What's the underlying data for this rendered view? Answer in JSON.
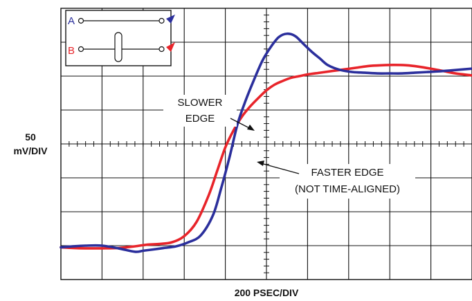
{
  "chart_data": {
    "type": "line",
    "xlabel": "200 PSEC/DIV",
    "ylabel_lines": [
      "50",
      "mV/DIV"
    ],
    "grid": true,
    "divisions": {
      "x": 10,
      "y": 8
    },
    "xlim": [
      0,
      10
    ],
    "ylim": [
      0,
      8
    ],
    "series": [
      {
        "name": "A",
        "color": "#2b2f9c",
        "x": [
          0,
          0.3,
          0.6,
          1.0,
          1.4,
          1.8,
          2.0,
          2.2,
          2.5,
          2.8,
          3.1,
          3.4,
          3.7,
          3.9,
          4.1,
          4.3,
          4.5,
          4.7,
          4.9,
          5.1,
          5.3,
          5.5,
          5.7,
          5.9,
          6.1,
          6.3,
          6.5,
          6.8,
          7.1,
          7.4,
          7.7,
          8.0,
          8.3,
          8.6,
          8.9,
          9.2,
          9.5,
          9.8,
          10.0
        ],
        "y": [
          0.95,
          0.98,
          1.0,
          1.0,
          0.92,
          0.82,
          0.85,
          0.88,
          0.93,
          0.98,
          1.1,
          1.3,
          1.9,
          2.7,
          3.6,
          4.6,
          5.3,
          5.9,
          6.45,
          6.85,
          7.15,
          7.25,
          7.18,
          6.95,
          6.72,
          6.52,
          6.32,
          6.18,
          6.12,
          6.1,
          6.08,
          6.08,
          6.08,
          6.1,
          6.12,
          6.14,
          6.17,
          6.2,
          6.22
        ]
      },
      {
        "name": "B",
        "color": "#e8242a",
        "x": [
          0,
          0.3,
          0.6,
          1.0,
          1.4,
          1.8,
          2.1,
          2.4,
          2.7,
          3.0,
          3.3,
          3.6,
          3.8,
          4.0,
          4.2,
          4.4,
          4.6,
          4.8,
          5.0,
          5.2,
          5.4,
          5.6,
          5.8,
          6.0,
          6.3,
          6.6,
          6.9,
          7.2,
          7.5,
          7.8,
          8.1,
          8.4,
          8.7,
          9.0,
          9.3,
          9.6,
          10.0
        ],
        "y": [
          0.95,
          0.93,
          0.92,
          0.92,
          0.93,
          0.98,
          1.03,
          1.05,
          1.1,
          1.28,
          1.7,
          2.5,
          3.2,
          3.9,
          4.4,
          4.8,
          5.1,
          5.35,
          5.58,
          5.75,
          5.86,
          5.95,
          6.0,
          6.05,
          6.1,
          6.15,
          6.2,
          6.25,
          6.3,
          6.32,
          6.33,
          6.32,
          6.28,
          6.22,
          6.15,
          6.08,
          6.02
        ]
      }
    ],
    "annotations": [
      {
        "lines": [
          "SLOWER",
          "EDGE"
        ],
        "target": "B"
      },
      {
        "lines": [
          "FASTER EDGE",
          "(NOT TIME-ALIGNED)"
        ],
        "target": "A"
      }
    ],
    "inset": {
      "label_a": "A",
      "label_b": "B",
      "label_a_color": "#2b2f9c",
      "label_b_color": "#e8242a"
    }
  }
}
